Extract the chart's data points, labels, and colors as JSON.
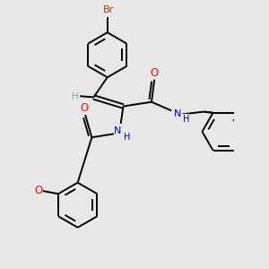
{
  "background_color": "#e8e8e8",
  "atom_colors": {
    "C": "#000000",
    "H": "#7aabab",
    "N": "#0000cc",
    "O": "#ff0000",
    "Br": "#994400"
  },
  "bond_color": "#000000",
  "bond_width": 1.4,
  "figsize": [
    3.0,
    3.0
  ],
  "dpi": 100,
  "xlim": [
    -0.3,
    5.2
  ],
  "ylim": [
    -3.8,
    3.6
  ]
}
